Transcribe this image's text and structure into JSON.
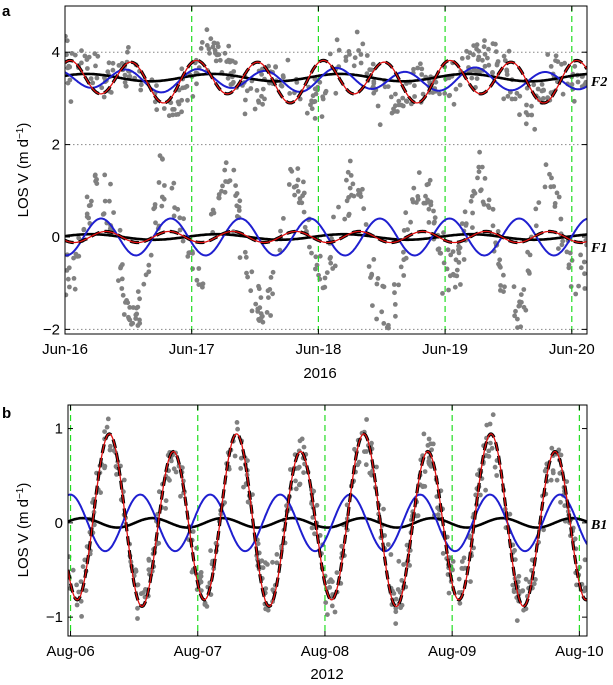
{
  "chart_data": [
    {
      "panel": "a",
      "type": "scatter",
      "xlabel": "2016",
      "ylabel": "LOS V (m d",
      "ylabel_sup": "−1",
      "ylabel_tail": ")",
      "xlim": [
        0,
        4.12
      ],
      "ylim": [
        -2.1,
        5.0
      ],
      "x_ticks": [
        0,
        1,
        2,
        3,
        4
      ],
      "x_tick_labels": [
        "Jun-16",
        "Jun-17",
        "Jun-18",
        "Jun-19",
        "Jun-20"
      ],
      "y_ticks": [
        -2,
        0,
        2,
        4
      ],
      "y_tick_labels": [
        "−2",
        "0",
        "2",
        "4"
      ],
      "dotted_hlines": [
        -2,
        2,
        4
      ],
      "vlines": [
        1,
        2,
        3,
        4
      ],
      "series_labels": [
        {
          "text": "F2",
          "y": 3.4
        },
        {
          "text": "F1",
          "y": -0.2
        }
      ],
      "groups": [
        {
          "label": "F2",
          "observations": {
            "offset": 3.4,
            "components": [
              {
                "amp": 0.35,
                "period": 1.0,
                "phase": 0.0
              },
              {
                "amp": 0.3,
                "period": 0.55,
                "phase": 1.0
              }
            ],
            "noise": 0.25,
            "count": 380
          },
          "curves": [
            {
              "name": "annual",
              "style": "black",
              "offset": 3.45,
              "components": [
                {
                  "amp": 0.08,
                  "period": 1.0,
                  "phase": 0.5
                }
              ]
            },
            {
              "name": "fit",
              "style": "blue",
              "offset": 3.4,
              "components": [
                {
                  "amp": 0.22,
                  "period": 0.55,
                  "phase": 2.3
                },
                {
                  "amp": 0.05,
                  "period": 1.0,
                  "phase": 0.0
                }
              ]
            },
            {
              "name": "model",
              "style": "dashed-black",
              "offset": 3.4,
              "components": [
                {
                  "amp": 0.4,
                  "period": 0.5,
                  "phase": 1.2
                },
                {
                  "amp": 0.1,
                  "period": 1.0,
                  "phase": 0.0
                }
              ]
            },
            {
              "name": "model-red",
              "style": "red",
              "offset": 3.4,
              "components": [
                {
                  "amp": 0.4,
                  "period": 0.5,
                  "phase": 1.2
                },
                {
                  "amp": 0.1,
                  "period": 1.0,
                  "phase": 0.0
                }
              ]
            }
          ]
        },
        {
          "label": "F1",
          "observations": {
            "offset": -0.1,
            "components": [
              {
                "amp": 1.2,
                "period": 0.5,
                "phase": 4.2
              },
              {
                "amp": 0.5,
                "period": 1.0,
                "phase": 1.3
              }
            ],
            "noise": 0.3,
            "count": 420
          },
          "curves": [
            {
              "name": "annual",
              "style": "black",
              "offset": 0.0,
              "components": [
                {
                  "amp": 0.06,
                  "period": 1.0,
                  "phase": 0.3
                }
              ]
            },
            {
              "name": "fit",
              "style": "blue",
              "offset": 0.0,
              "components": [
                {
                  "amp": 0.4,
                  "period": 0.55,
                  "phase": 4.6
                }
              ]
            },
            {
              "name": "model",
              "style": "dashed-black",
              "offset": 0.0,
              "components": [
                {
                  "amp": 0.12,
                  "period": 0.5,
                  "phase": 3.8
                }
              ]
            },
            {
              "name": "model-red",
              "style": "red",
              "offset": 0.0,
              "components": [
                {
                  "amp": 0.12,
                  "period": 0.5,
                  "phase": 3.8
                }
              ]
            }
          ]
        }
      ]
    },
    {
      "panel": "b",
      "type": "scatter",
      "xlabel": "2012",
      "ylabel": "LOS V (m d",
      "ylabel_sup": "−1",
      "ylabel_tail": ")",
      "xlim": [
        -0.02,
        4.06
      ],
      "ylim": [
        -1.2,
        1.25
      ],
      "x_ticks": [
        0,
        1,
        2,
        3,
        4
      ],
      "x_tick_labels": [
        "Aug-06",
        "Aug-07",
        "Aug-08",
        "Aug-09",
        "Aug-10"
      ],
      "y_ticks": [
        -1,
        0,
        1
      ],
      "y_tick_labels": [
        "−1",
        "0",
        "1"
      ],
      "dotted_hlines": [],
      "vlines": [
        0,
        1,
        2,
        3,
        4
      ],
      "series_labels": [
        {
          "text": "B1",
          "y": 0.0
        }
      ],
      "groups": [
        {
          "label": "B1",
          "observations": {
            "offset": 0.0,
            "components": [
              {
                "amp": 0.75,
                "period": 0.5,
                "phase": 4.0
              },
              {
                "amp": 0.1,
                "period": 1.0,
                "phase": 0.0
              }
            ],
            "noise": 0.15,
            "count": 520
          },
          "curves": [
            {
              "name": "annual",
              "style": "black",
              "offset": 0.0,
              "components": [
                {
                  "amp": 0.05,
                  "period": 0.55,
                  "phase": 0.5
                }
              ]
            },
            {
              "name": "fit",
              "style": "blue",
              "offset": 0.0,
              "components": [
                {
                  "amp": 0.3,
                  "period": 0.55,
                  "phase": 1.6
                }
              ]
            },
            {
              "name": "model",
              "style": "dashed-black",
              "offset": 0.0,
              "components": [
                {
                  "amp": 0.85,
                  "period": 0.5,
                  "phase": 4.0
                },
                {
                  "amp": 0.1,
                  "period": 1.0,
                  "phase": 0.0
                }
              ]
            },
            {
              "name": "model-red",
              "style": "red",
              "offset": 0.0,
              "components": [
                {
                  "amp": 0.85,
                  "period": 0.5,
                  "phase": 4.0
                },
                {
                  "amp": 0.1,
                  "period": 1.0,
                  "phase": 0.0
                }
              ]
            }
          ]
        }
      ]
    }
  ],
  "colors": {
    "observations": "#808080",
    "annual": "#000000",
    "fit": "#1f1fd0",
    "model": "#000000",
    "model_red": "#e01010",
    "vlines": "#22dd22",
    "dotted": "#888888"
  }
}
